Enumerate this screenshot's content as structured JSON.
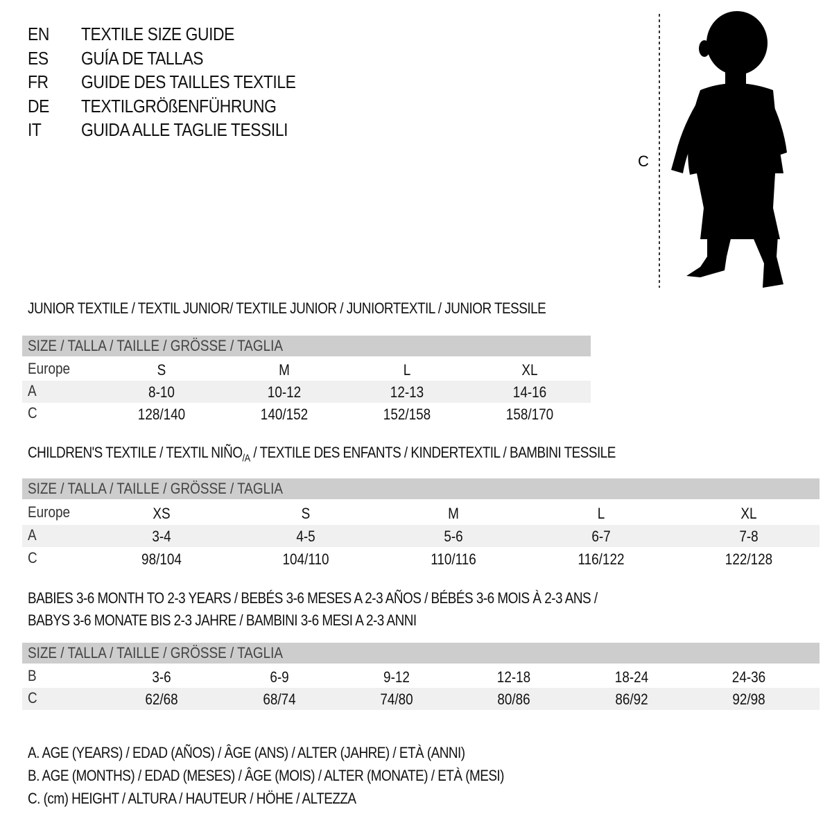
{
  "languages": [
    {
      "code": "EN",
      "title": "TEXTILE SIZE GUIDE"
    },
    {
      "code": "ES",
      "title": "GUÍA DE TALLAS"
    },
    {
      "code": "FR",
      "title": "GUIDE DES TAILLES TEXTILE"
    },
    {
      "code": "DE",
      "title": "TEXTILGRÖßENFÜHRUNG"
    },
    {
      "code": "IT",
      "title": "GUIDA ALLE TAGLIE TESSILI"
    }
  ],
  "figure": {
    "height_label": "C"
  },
  "junior": {
    "title": "JUNIOR TEXTILE / TEXTIL JUNIOR/ TEXTILE JUNIOR / JUNIORTEXTIL / JUNIOR TESSILE",
    "header": "SIZE / TALLA / TAILLE / GRÖSSE / TAGLIA",
    "rows": [
      {
        "label": "Europe",
        "values": [
          "S",
          "M",
          "L",
          "XL"
        ]
      },
      {
        "label": "A",
        "values": [
          "8-10",
          "10-12",
          "12-13",
          "14-16"
        ]
      },
      {
        "label": "C",
        "values": [
          "128/140",
          "140/152",
          "152/158",
          "158/170"
        ]
      }
    ]
  },
  "children": {
    "title_a": "CHILDREN'S TEXTILE / TEXTIL NIÑO",
    "title_sub": "/A",
    "title_b": " / TEXTILE DES ENFANTS / KINDERTEXTIL / BAMBINI TESSILE",
    "header": "SIZE / TALLA / TAILLE / GRÖSSE / TAGLIA",
    "rows": [
      {
        "label": "Europe",
        "values": [
          "XS",
          "S",
          "M",
          "L",
          "XL"
        ]
      },
      {
        "label": "A",
        "values": [
          "3-4",
          "4-5",
          "5-6",
          "6-7",
          "7-8"
        ]
      },
      {
        "label": "C",
        "values": [
          "98/104",
          "104/110",
          "110/116",
          "116/122",
          "122/128"
        ]
      }
    ]
  },
  "babies": {
    "title_1": "BABIES 3-6 MONTH TO 2-3 YEARS / BEBÉS 3-6 MESES A 2-3 AÑOS / BÉBÉS 3-6 MOIS À 2-3 ANS /",
    "title_2": "BABYS 3-6 MONATE BIS 2-3 JAHRE / BAMBINI 3-6 MESI A 2-3 ANNI",
    "header": "SIZE / TALLA / TAILLE / GRÖSSE / TAGLIA",
    "rows": [
      {
        "label": "B",
        "values": [
          "3-6",
          "6-9",
          "9-12",
          "12-18",
          "18-24",
          "24-36"
        ]
      },
      {
        "label": "C",
        "values": [
          "62/68",
          "68/74",
          "74/80",
          "80/86",
          "86/92",
          "92/98"
        ]
      }
    ]
  },
  "legend": [
    "A. AGE (YEARS) / EDAD (AÑOS) / ÂGE (ANS) / ALTER (JAHRE) / ETÀ (ANNI)",
    "B. AGE (MONTHS) / EDAD (MESES) / ÂGE (MOIS) / ALTER (MONATE) / ETÀ (MESI)",
    "C. (cm) HEIGHT / ALTURA / HAUTEUR / HÖHE / ALTEZZA"
  ]
}
